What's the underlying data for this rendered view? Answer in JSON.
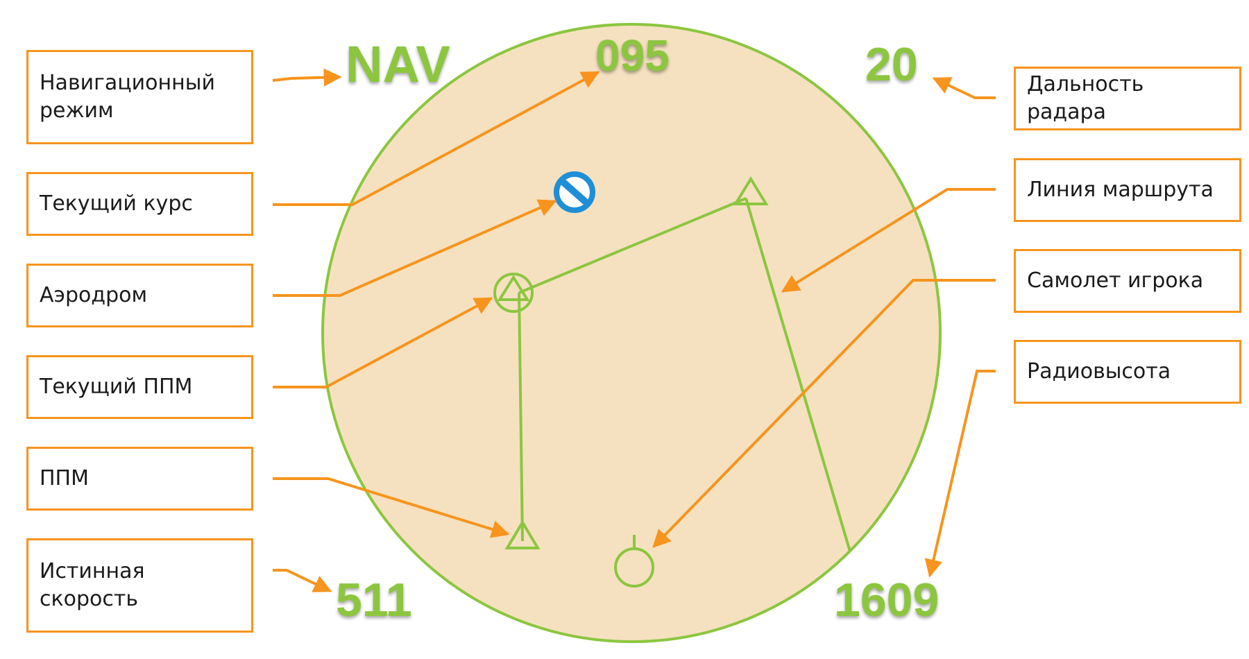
{
  "display": {
    "mode": "NAV",
    "heading": "095",
    "radar_range": "20",
    "true_airspeed": "511",
    "radar_altitude": "1609"
  },
  "callouts": {
    "nav_mode": "Навигационный\nрежим",
    "current_heading": "Текущий курс",
    "airfield": "Аэродром",
    "current_waypoint": "Текущий ППМ",
    "waypoint": "ППМ",
    "true_airspeed": "Истинная\nскорость",
    "radar_range": "Дальность радара",
    "route_line": "Линия маршрута",
    "player_aircraft": "Самолет игрока",
    "radar_altitude": "Радиовысота"
  },
  "colors": {
    "symbology": "#8cc63f",
    "scope_fill": "#f5e1c0",
    "callout_border": "#f7941d",
    "leader_line": "#f7941d",
    "airfield_icon": "#1e8fd6"
  },
  "icons": {
    "airfield": "airfield-icon",
    "waypoint": "triangle-icon",
    "current_waypoint": "circled-triangle-icon",
    "player_aircraft": "aircraft-circle-icon"
  }
}
